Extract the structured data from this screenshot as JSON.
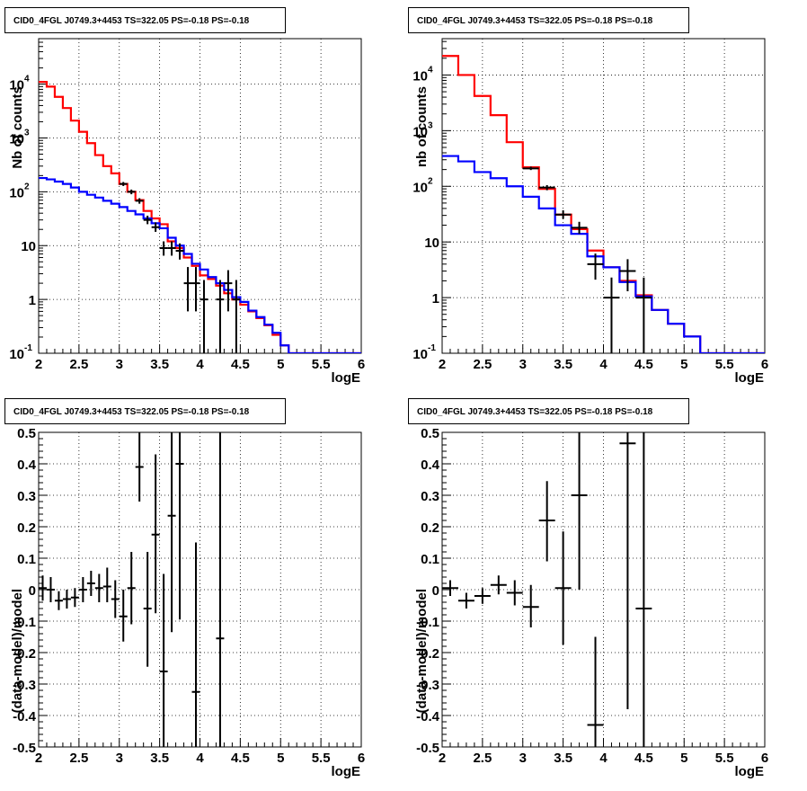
{
  "colors": {
    "data": "#000000",
    "total_model": "#ff0000",
    "component_model": "#0000ff",
    "grid": "#000000",
    "background": "#ffffff"
  },
  "chart_data": [
    {
      "type": "line",
      "panel": "top-left",
      "title": "CID0_4FGL J0749.3+4453 TS=322.05 PS=-0.18 PS=-0.18",
      "xlabel": "logE",
      "ylabel": "Nb of counts",
      "xlim": [
        2,
        6
      ],
      "ylim": [
        0.1,
        70000
      ],
      "yscale": "log",
      "grid": true,
      "xticks": [
        "2",
        "2.5",
        "3",
        "3.5",
        "4",
        "4.5",
        "5",
        "5.5",
        "6"
      ],
      "yticks": [
        {
          "label": "10",
          "sup": "-1",
          "value": 0.1
        },
        {
          "label": "1",
          "sup": "",
          "value": 1
        },
        {
          "label": "10",
          "sup": "",
          "value": 10
        },
        {
          "label": "10",
          "sup": "2",
          "value": 100
        },
        {
          "label": "10",
          "sup": "3",
          "value": 1000
        },
        {
          "label": "10",
          "sup": "4",
          "value": 10000
        }
      ],
      "bin_edges": [
        2.0,
        2.1,
        2.2,
        2.3,
        2.4,
        2.5,
        2.6,
        2.7,
        2.8,
        2.9,
        3.0,
        3.1,
        3.2,
        3.3,
        3.4,
        3.5,
        3.6,
        3.7,
        3.8,
        3.9,
        4.0,
        4.1,
        4.2,
        4.3,
        4.4,
        4.5,
        4.6,
        4.7,
        4.8,
        4.9,
        5.0,
        5.1,
        5.2,
        5.3,
        5.4,
        5.5,
        5.6,
        5.7,
        5.8,
        5.9,
        6.0
      ],
      "series": [
        {
          "role": "total_model",
          "kind": "step",
          "values": [
            11000,
            9000,
            5800,
            3600,
            2100,
            1300,
            800,
            480,
            300,
            220,
            140,
            100,
            70,
            44,
            32,
            25,
            12,
            9,
            6,
            4.2,
            2.8,
            2.4,
            1.8,
            1.3,
            1.0,
            0.8,
            0.6,
            0.45,
            0.33,
            0.22,
            0.14,
            0.1,
            0.1,
            0.1,
            0.1,
            0.1,
            0.1,
            0.1,
            0.1,
            0.1
          ]
        },
        {
          "role": "component_model",
          "kind": "step",
          "values": [
            180,
            170,
            155,
            140,
            120,
            100,
            88,
            78,
            68,
            60,
            52,
            44,
            38,
            32,
            26,
            21,
            14,
            10,
            7,
            4.6,
            3.6,
            2.6,
            2.0,
            1.5,
            1.1,
            0.9,
            0.62,
            0.47,
            0.34,
            0.24,
            0.14,
            0.1,
            0.1,
            0.1,
            0.1,
            0.1,
            0.1,
            0.1,
            0.1,
            0.1
          ]
        },
        {
          "role": "data",
          "kind": "errorbar",
          "points": [
            {
              "x": 3.05,
              "y": 140,
              "lo": 128,
              "hi": 152
            },
            {
              "x": 3.15,
              "y": 100,
              "lo": 90,
              "hi": 110
            },
            {
              "x": 3.25,
              "y": 68,
              "lo": 60,
              "hi": 76
            },
            {
              "x": 3.35,
              "y": 30,
              "lo": 25,
              "hi": 36
            },
            {
              "x": 3.45,
              "y": 22,
              "lo": 18,
              "hi": 27
            },
            {
              "x": 3.55,
              "y": 9,
              "lo": 6.5,
              "hi": 12
            },
            {
              "x": 3.65,
              "y": 9,
              "lo": 6.5,
              "hi": 12
            },
            {
              "x": 3.75,
              "y": 8,
              "lo": 5.5,
              "hi": 11
            },
            {
              "x": 3.85,
              "y": 2,
              "lo": 0.6,
              "hi": 4
            },
            {
              "x": 3.95,
              "y": 2,
              "lo": 0.6,
              "hi": 4
            },
            {
              "x": 4.05,
              "y": 1,
              "lo": 0.1,
              "hi": 2.3
            },
            {
              "x": 4.25,
              "y": 1,
              "lo": 0.1,
              "hi": 2.3
            },
            {
              "x": 4.35,
              "y": 2,
              "lo": 0.6,
              "hi": 3.5
            },
            {
              "x": 4.45,
              "y": 1,
              "lo": 0.1,
              "hi": 2.3
            }
          ]
        }
      ]
    },
    {
      "type": "line",
      "panel": "top-right",
      "title": "CID0_4FGL J0749.3+4453 TS=322.05 PS=-0.18 PS=-0.18",
      "xlabel": "logE",
      "ylabel": "nb of counts",
      "xlim": [
        2,
        6
      ],
      "ylim": [
        0.1,
        45000
      ],
      "yscale": "log",
      "grid": true,
      "xticks": [
        "2",
        "2.5",
        "3",
        "3.5",
        "4",
        "4.5",
        "5",
        "5.5",
        "6"
      ],
      "yticks": [
        {
          "label": "10",
          "sup": "-1",
          "value": 0.1
        },
        {
          "label": "1",
          "sup": "",
          "value": 1
        },
        {
          "label": "10",
          "sup": "",
          "value": 10
        },
        {
          "label": "10",
          "sup": "2",
          "value": 100
        },
        {
          "label": "10",
          "sup": "3",
          "value": 1000
        },
        {
          "label": "10",
          "sup": "4",
          "value": 10000
        }
      ],
      "bin_edges": [
        2.0,
        2.2,
        2.4,
        2.6,
        2.8,
        3.0,
        3.2,
        3.4,
        3.6,
        3.8,
        4.0,
        4.2,
        4.4,
        4.6,
        4.8,
        5.0,
        5.2,
        5.4,
        5.6,
        5.8,
        6.0
      ],
      "series": [
        {
          "role": "total_model",
          "kind": "step",
          "values": [
            22000,
            10000,
            4200,
            1900,
            620,
            220,
            90,
            31,
            17,
            7,
            3.5,
            2.0,
            1.1,
            0.6,
            0.34,
            0.2,
            0.1,
            0.1,
            0.1,
            0.1
          ]
        },
        {
          "role": "component_model",
          "kind": "step",
          "values": [
            350,
            280,
            180,
            140,
            100,
            65,
            40,
            20,
            14,
            5.5,
            3.5,
            1.9,
            1.05,
            0.6,
            0.34,
            0.2,
            0.1,
            0.1,
            0.1,
            0.1
          ]
        },
        {
          "role": "data",
          "kind": "errorbar",
          "points": [
            {
              "x": 3.1,
              "y": 210,
              "lo": 196,
              "hi": 225
            },
            {
              "x": 3.3,
              "y": 95,
              "lo": 85,
              "hi": 105
            },
            {
              "x": 3.5,
              "y": 31,
              "lo": 26,
              "hi": 37
            },
            {
              "x": 3.7,
              "y": 18,
              "lo": 14,
              "hi": 23
            },
            {
              "x": 3.9,
              "y": 4,
              "lo": 2.1,
              "hi": 6.2
            },
            {
              "x": 4.1,
              "y": 1,
              "lo": 0.1,
              "hi": 2.3
            },
            {
              "x": 4.3,
              "y": 3,
              "lo": 1.3,
              "hi": 4.9
            },
            {
              "x": 4.5,
              "y": 1,
              "lo": 0.1,
              "hi": 2.3
            }
          ]
        }
      ]
    },
    {
      "type": "scatter",
      "panel": "bottom-left",
      "title": "CID0_4FGL J0749.3+4453 TS=322.05 PS=-0.18 PS=-0.18",
      "xlabel": "logE",
      "ylabel": "(data-model)/model",
      "xlim": [
        2,
        6
      ],
      "ylim": [
        -0.5,
        0.5
      ],
      "yscale": "linear",
      "grid": true,
      "xticks": [
        "2",
        "2.5",
        "3",
        "3.5",
        "4",
        "4.5",
        "5",
        "5.5",
        "6"
      ],
      "yticks": [
        "-0.5",
        "-0.4",
        "-0.3",
        "-0.2",
        "-0.1",
        "0",
        "0.1",
        "0.2",
        "0.3",
        "0.4",
        "0.5"
      ],
      "half_width": 0.05,
      "series": [
        {
          "role": "data",
          "kind": "errorbar",
          "points": [
            {
              "x": 2.05,
              "y": 0.005,
              "lo": -0.035,
              "hi": 0.045
            },
            {
              "x": 2.15,
              "y": 0.0,
              "lo": -0.04,
              "hi": 0.04
            },
            {
              "x": 2.25,
              "y": -0.035,
              "lo": -0.065,
              "hi": -0.005
            },
            {
              "x": 2.35,
              "y": -0.03,
              "lo": -0.06,
              "hi": 0.0
            },
            {
              "x": 2.45,
              "y": -0.025,
              "lo": -0.055,
              "hi": 0.005
            },
            {
              "x": 2.55,
              "y": 0.0,
              "lo": -0.04,
              "hi": 0.04
            },
            {
              "x": 2.65,
              "y": 0.02,
              "lo": -0.02,
              "hi": 0.06
            },
            {
              "x": 2.75,
              "y": 0.005,
              "lo": -0.04,
              "hi": 0.05
            },
            {
              "x": 2.85,
              "y": 0.01,
              "lo": -0.04,
              "hi": 0.07
            },
            {
              "x": 2.95,
              "y": -0.03,
              "lo": -0.09,
              "hi": 0.03
            },
            {
              "x": 3.05,
              "y": -0.085,
              "lo": -0.165,
              "hi": 0.0
            },
            {
              "x": 3.15,
              "y": 0.005,
              "lo": -0.11,
              "hi": 0.12
            },
            {
              "x": 3.25,
              "y": 0.39,
              "lo": 0.28,
              "hi": 0.5
            },
            {
              "x": 3.35,
              "y": -0.06,
              "lo": -0.245,
              "hi": 0.12
            },
            {
              "x": 3.45,
              "y": 0.175,
              "lo": -0.075,
              "hi": 0.43
            },
            {
              "x": 3.55,
              "y": -0.26,
              "lo": -0.5,
              "hi": 0.05
            },
            {
              "x": 3.65,
              "y": 0.235,
              "lo": -0.135,
              "hi": 0.5
            },
            {
              "x": 3.75,
              "y": 0.4,
              "lo": -0.095,
              "hi": 0.5
            },
            {
              "x": 3.95,
              "y": -0.325,
              "lo": -0.5,
              "hi": 0.15
            },
            {
              "x": 4.25,
              "y": -0.155,
              "lo": -0.5,
              "hi": 0.5
            }
          ]
        }
      ]
    },
    {
      "type": "scatter",
      "panel": "bottom-right",
      "title": "CID0_4FGL J0749.3+4453 TS=322.05 PS=-0.18 PS=-0.18",
      "xlabel": "logE",
      "ylabel": "(data-model)/model",
      "xlim": [
        2,
        6
      ],
      "ylim": [
        -0.5,
        0.5
      ],
      "yscale": "linear",
      "grid": true,
      "xticks": [
        "2",
        "2.5",
        "3",
        "3.5",
        "4",
        "4.5",
        "5",
        "5.5",
        "6"
      ],
      "yticks": [
        "-0.5",
        "-0.4",
        "-0.3",
        "-0.2",
        "-0.1",
        "0",
        "0.1",
        "0.2",
        "0.3",
        "0.4",
        "0.5"
      ],
      "half_width": 0.1,
      "series": [
        {
          "role": "data",
          "kind": "errorbar",
          "points": [
            {
              "x": 2.1,
              "y": 0.005,
              "lo": -0.02,
              "hi": 0.03
            },
            {
              "x": 2.3,
              "y": -0.035,
              "lo": -0.06,
              "hi": -0.01
            },
            {
              "x": 2.5,
              "y": -0.02,
              "lo": -0.045,
              "hi": 0.005
            },
            {
              "x": 2.7,
              "y": 0.015,
              "lo": -0.015,
              "hi": 0.045
            },
            {
              "x": 2.9,
              "y": -0.01,
              "lo": -0.05,
              "hi": 0.03
            },
            {
              "x": 3.1,
              "y": -0.055,
              "lo": -0.12,
              "hi": 0.015
            },
            {
              "x": 3.3,
              "y": 0.22,
              "lo": 0.09,
              "hi": 0.345
            },
            {
              "x": 3.5,
              "y": 0.005,
              "lo": -0.175,
              "hi": 0.185
            },
            {
              "x": 3.7,
              "y": 0.3,
              "lo": 0.0,
              "hi": 0.5
            },
            {
              "x": 3.9,
              "y": -0.43,
              "lo": -0.5,
              "hi": -0.15
            },
            {
              "x": 4.3,
              "y": 0.465,
              "lo": -0.38,
              "hi": 0.5
            },
            {
              "x": 4.5,
              "y": -0.06,
              "lo": -0.5,
              "hi": 0.5
            }
          ]
        }
      ]
    }
  ]
}
